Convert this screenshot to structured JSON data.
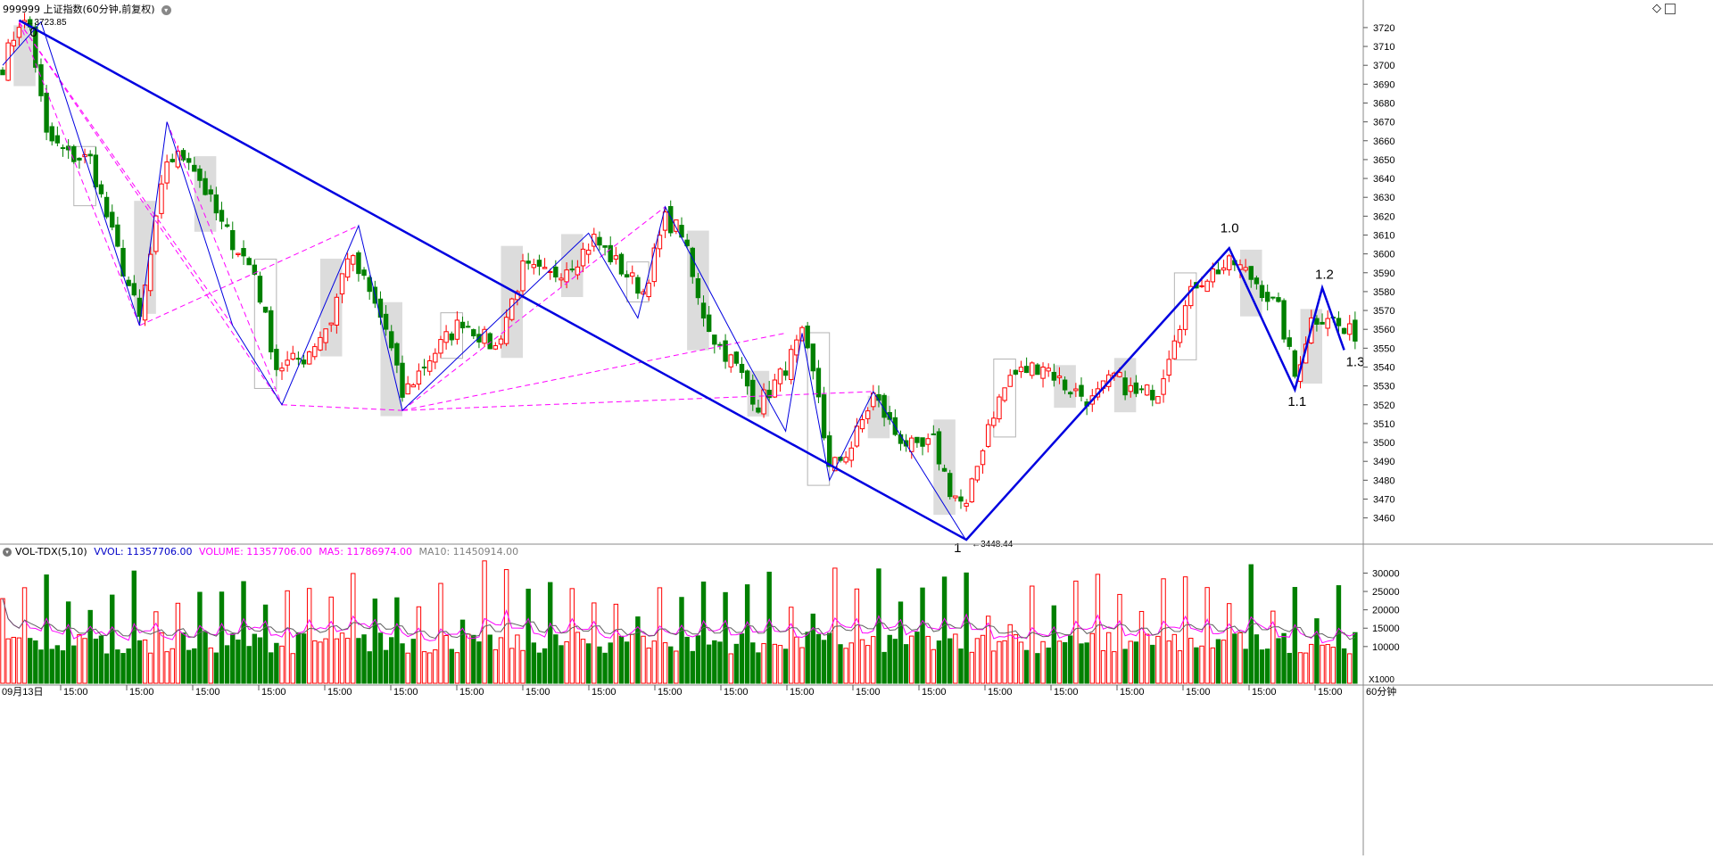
{
  "header": {
    "title": "999999 上证指数(60分钟,前复权)",
    "dropdown_icon": "chevron-down-icon"
  },
  "top_right_icons": [
    "diamond-icon",
    "window-icon"
  ],
  "volume_header": {
    "indicator": "VOL-TDX(5,10)",
    "vvol_label": "VVOL: 11357706.00",
    "volume_label": "VOLUME: 11357706.00",
    "ma5_label": "MA5: 11786974.00",
    "ma10_label": "MA10: 11450914.00"
  },
  "colors": {
    "up": "#ff0000",
    "down": "#008000",
    "wave": "#0000e0",
    "fan": "#ff00ff",
    "grid": "#c8c8c8",
    "ma5": "#ff00ff",
    "ma10": "#606060"
  },
  "x_axis": {
    "start_label": "09月13日",
    "session_label": "15:00",
    "period_label": "60分钟",
    "volume_unit": "X1000"
  },
  "chart_data": [
    {
      "type": "candlestick",
      "title": "999999 上证指数(60分钟,前复权)",
      "ylim": [
        3448,
        3728
      ],
      "y_ticks": [
        3460,
        3470,
        3480,
        3490,
        3500,
        3510,
        3520,
        3530,
        3540,
        3550,
        3560,
        3570,
        3580,
        3590,
        3600,
        3610,
        3620,
        3630,
        3640,
        3650,
        3660,
        3670,
        3680,
        3690,
        3700,
        3710,
        3720
      ],
      "high_marker": "3723.85",
      "low_marker": "3448.44",
      "wave_labels": [
        "0",
        "1",
        "1.0",
        "1.1",
        "1.2",
        "1.3"
      ],
      "waypoints_main": [
        [
          3,
          3723.85
        ],
        [
          176,
          3448.44
        ],
        [
          224,
          3603
        ],
        [
          236,
          3528
        ],
        [
          241,
          3582
        ],
        [
          245,
          3549
        ]
      ],
      "waypoints_minor": [
        [
          0,
          3700
        ],
        [
          7,
          3723
        ],
        [
          25,
          3562
        ],
        [
          30,
          3670
        ],
        [
          42,
          3562
        ],
        [
          51,
          3520
        ],
        [
          65,
          3615
        ],
        [
          73,
          3517
        ],
        [
          107,
          3611
        ],
        [
          116,
          3566
        ],
        [
          121,
          3625
        ],
        [
          135,
          3548
        ],
        [
          143,
          3506
        ],
        [
          146,
          3558
        ],
        [
          151,
          3480
        ],
        [
          159,
          3527
        ],
        [
          176,
          3448
        ]
      ],
      "ohlc_anchors": [
        [
          0,
          3700
        ],
        [
          3,
          3723
        ],
        [
          5,
          3720
        ],
        [
          8,
          3662
        ],
        [
          12,
          3652
        ],
        [
          16,
          3650
        ],
        [
          20,
          3610
        ],
        [
          25,
          3565
        ],
        [
          30,
          3650
        ],
        [
          34,
          3652
        ],
        [
          40,
          3615
        ],
        [
          46,
          3590
        ],
        [
          50,
          3540
        ],
        [
          55,
          3545
        ],
        [
          60,
          3565
        ],
        [
          63,
          3600
        ],
        [
          66,
          3585
        ],
        [
          70,
          3560
        ],
        [
          73,
          3525
        ],
        [
          78,
          3545
        ],
        [
          84,
          3565
        ],
        [
          90,
          3550
        ],
        [
          95,
          3592
        ],
        [
          100,
          3588
        ],
        [
          105,
          3598
        ],
        [
          108,
          3608
        ],
        [
          113,
          3592
        ],
        [
          117,
          3580
        ],
        [
          121,
          3618
        ],
        [
          124,
          3612
        ],
        [
          127,
          3575
        ],
        [
          130,
          3555
        ],
        [
          134,
          3540
        ],
        [
          138,
          3520
        ],
        [
          142,
          3535
        ],
        [
          146,
          3556
        ],
        [
          149,
          3525
        ],
        [
          151,
          3485
        ],
        [
          155,
          3498
        ],
        [
          159,
          3525
        ],
        [
          163,
          3505
        ],
        [
          167,
          3495
        ],
        [
          170,
          3500
        ],
        [
          173,
          3475
        ],
        [
          176,
          3465
        ],
        [
          180,
          3510
        ],
        [
          184,
          3535
        ],
        [
          190,
          3542
        ],
        [
          194,
          3530
        ],
        [
          199,
          3522
        ],
        [
          203,
          3535
        ],
        [
          207,
          3525
        ],
        [
          211,
          3528
        ],
        [
          214,
          3558
        ],
        [
          218,
          3585
        ],
        [
          222,
          3592
        ],
        [
          225,
          3595
        ],
        [
          229,
          3585
        ],
        [
          233,
          3570
        ],
        [
          236,
          3535
        ],
        [
          239,
          3565
        ],
        [
          242,
          3568
        ],
        [
          245,
          3558
        ]
      ]
    },
    {
      "type": "bar",
      "title": "VOL-TDX(5,10)",
      "ylim": [
        0,
        34000
      ],
      "y_ticks": [
        10000,
        15000,
        20000,
        25000,
        30000
      ],
      "series": [
        {
          "name": "VOLUME"
        },
        {
          "name": "MA5"
        },
        {
          "name": "MA10"
        }
      ]
    }
  ]
}
